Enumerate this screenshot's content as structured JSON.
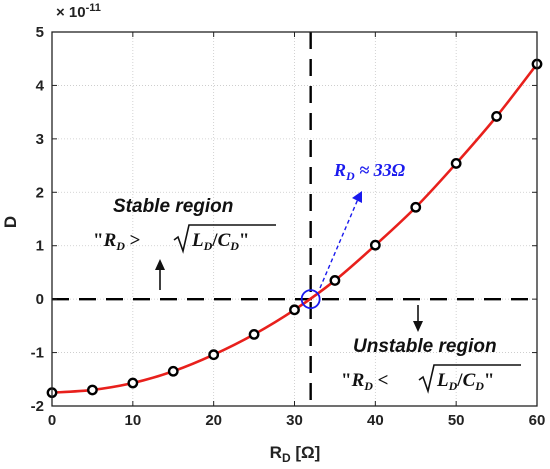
{
  "chart_data": {
    "type": "line",
    "x": [
      0,
      5,
      10,
      15,
      20,
      25,
      30,
      35,
      40,
      45,
      50,
      55,
      60
    ],
    "series": [
      {
        "values": [
          -1.75,
          -1.7,
          -1.57,
          -1.35,
          -1.04,
          -0.66,
          -0.2,
          0.35,
          1.01,
          1.72,
          2.54,
          3.42,
          4.4
        ],
        "color": "#e8201c",
        "marker_color": "#000000"
      }
    ],
    "xlim": [
      0,
      60
    ],
    "ylim": [
      -2,
      5
    ],
    "xticks": [
      "0",
      "10",
      "20",
      "30",
      "40",
      "50",
      "60"
    ],
    "yticks": [
      "-2",
      "-1",
      "0",
      "1",
      "2",
      "3",
      "4",
      "5"
    ],
    "y_multiplier": {
      "base": "× 10",
      "exp": "-11"
    },
    "xlabel": {
      "main": "R",
      "sub": "D",
      "unit": " [Ω]"
    },
    "ylabel": "D",
    "grid": true,
    "reference_lines": {
      "vertical_x": 32,
      "horizontal_y": 0,
      "color": "#000000"
    },
    "critical_point": {
      "x": 32,
      "y": 0,
      "color": "#1a1aee"
    },
    "annotations": {
      "callout": {
        "var": "R",
        "sub": "D",
        "rest": " ≈ 33Ω"
      },
      "stable": {
        "title": "Stable region",
        "q1": "\"",
        "r": "R",
        "r_sub": "D",
        "op": " >",
        "l": "L",
        "l_sub": "D",
        "slash": "/",
        "c": "C",
        "c_sub": "D",
        "q2": "\""
      },
      "unstable": {
        "title": "Unstable region",
        "q1": "\"",
        "r": "R",
        "r_sub": "D",
        "op": " <",
        "l": "L",
        "l_sub": "D",
        "slash": "/",
        "c": "C",
        "c_sub": "D",
        "q2": "\""
      }
    }
  }
}
